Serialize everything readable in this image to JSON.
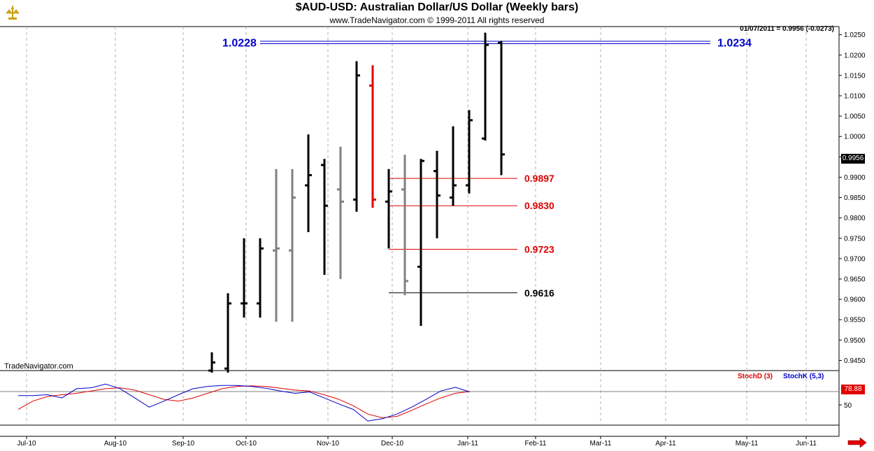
{
  "header": {
    "title": "$AUD-USD:  Australian Dollar/US Dollar  (Weekly bars)",
    "subtitle": "www.TradeNavigator.com © 1999-2011 All rights reserved",
    "readout": "01/07/2011 = 0.9956 (-0.0273)"
  },
  "watermark": "TradeNavigator.com",
  "colors": {
    "up_bar": "#000000",
    "gray_bar": "#808080",
    "red_bar": "#e00000",
    "level_red": "#e00000",
    "level_blue": "#0000cc",
    "stoch_d": "#e00000",
    "stoch_k": "#0000cc"
  },
  "chart_data": {
    "type": "ohlc",
    "x_ticks": [
      "Jul-10",
      "Aug-10",
      "Sep-10",
      "Oct-10",
      "Nov-10",
      "Dec-10",
      "Jan-11",
      "Feb-11",
      "Mar-11",
      "Apr-11",
      "May-11",
      "Jun-11"
    ],
    "y_ticks": [
      "0.9450",
      "0.9500",
      "0.9550",
      "0.9600",
      "0.9650",
      "0.9700",
      "0.9750",
      "0.9800",
      "0.9850",
      "0.9900",
      "0.9950",
      "1.0000",
      "1.0050",
      "1.0100",
      "1.0150",
      "1.0200",
      "1.0250"
    ],
    "ylim": [
      0.9425,
      1.027
    ],
    "last_price": "0.9956",
    "bars": [
      {
        "high": 0.947,
        "low": 0.942,
        "close": 0.9445,
        "open": 0.9425,
        "color": "black"
      },
      {
        "high": 0.9615,
        "low": 0.942,
        "close": 0.959,
        "open": 0.943,
        "color": "black"
      },
      {
        "high": 0.975,
        "low": 0.9555,
        "close": 0.959,
        "open": 0.959,
        "color": "black"
      },
      {
        "high": 0.975,
        "low": 0.9555,
        "close": 0.9725,
        "open": 0.959,
        "color": "black"
      },
      {
        "high": 0.992,
        "low": 0.9545,
        "close": 0.9725,
        "open": 0.972,
        "color": "gray"
      },
      {
        "high": 0.992,
        "low": 0.9545,
        "close": 0.985,
        "open": 0.972,
        "color": "gray"
      },
      {
        "high": 1.0005,
        "low": 0.9765,
        "close": 0.9905,
        "open": 0.988,
        "color": "black"
      },
      {
        "high": 0.9945,
        "low": 0.966,
        "close": 0.983,
        "open": 0.993,
        "color": "black"
      },
      {
        "high": 0.9975,
        "low": 0.965,
        "close": 0.984,
        "open": 0.987,
        "color": "gray"
      },
      {
        "high": 1.0185,
        "low": 0.9815,
        "close": 1.015,
        "open": 0.9845,
        "color": "black"
      },
      {
        "high": 1.0175,
        "low": 0.9825,
        "close": 0.9845,
        "open": 1.0125,
        "color": "red"
      },
      {
        "high": 0.992,
        "low": 0.9725,
        "close": 0.9865,
        "open": 0.984,
        "color": "black"
      },
      {
        "high": 0.9955,
        "low": 0.961,
        "close": 0.9645,
        "open": 0.987,
        "color": "gray"
      },
      {
        "high": 0.9945,
        "low": 0.9535,
        "close": 0.994,
        "open": 0.968,
        "color": "black"
      },
      {
        "high": 0.9965,
        "low": 0.975,
        "close": 0.9855,
        "open": 0.9915,
        "color": "black"
      },
      {
        "high": 1.0025,
        "low": 0.983,
        "close": 0.988,
        "open": 0.985,
        "color": "black"
      },
      {
        "high": 1.0065,
        "low": 0.986,
        "close": 1.004,
        "open": 0.988,
        "color": "black"
      },
      {
        "high": 1.0255,
        "low": 0.999,
        "close": 1.0225,
        "open": 0.9995,
        "color": "black"
      },
      {
        "high": 1.0235,
        "low": 0.9905,
        "close": 0.9956,
        "open": 1.023,
        "color": "black"
      }
    ],
    "levels": [
      {
        "label": "0.9897",
        "value": 0.9897,
        "color": "red"
      },
      {
        "label": "0.9830",
        "value": 0.983,
        "color": "red"
      },
      {
        "label": "0.9723",
        "value": 0.9723,
        "color": "red"
      },
      {
        "label": "0.9616",
        "value": 0.9616,
        "color": "black"
      }
    ],
    "resistance": {
      "left_label": "1.0228",
      "right_label": "1.0234",
      "values": [
        1.0228,
        1.0234
      ]
    },
    "stochastic": {
      "d_label": "StochD (3)",
      "k_label": "StochK (5,3)",
      "last_value": "78.88",
      "y_tick": "50",
      "ylim": [
        0,
        100
      ],
      "k": [
        70,
        70,
        72,
        65,
        85,
        87,
        95,
        85,
        65,
        45,
        58,
        72,
        85,
        90,
        92,
        92,
        90,
        86,
        80,
        75,
        78,
        65,
        52,
        40,
        15,
        20,
        30,
        45,
        62,
        80,
        88,
        78
      ],
      "d": [
        40,
        58,
        68,
        72,
        75,
        80,
        85,
        87,
        82,
        72,
        62,
        58,
        65,
        75,
        85,
        90,
        91,
        90,
        86,
        82,
        80,
        72,
        62,
        48,
        30,
        22,
        25,
        38,
        52,
        65,
        75,
        79
      ]
    }
  }
}
